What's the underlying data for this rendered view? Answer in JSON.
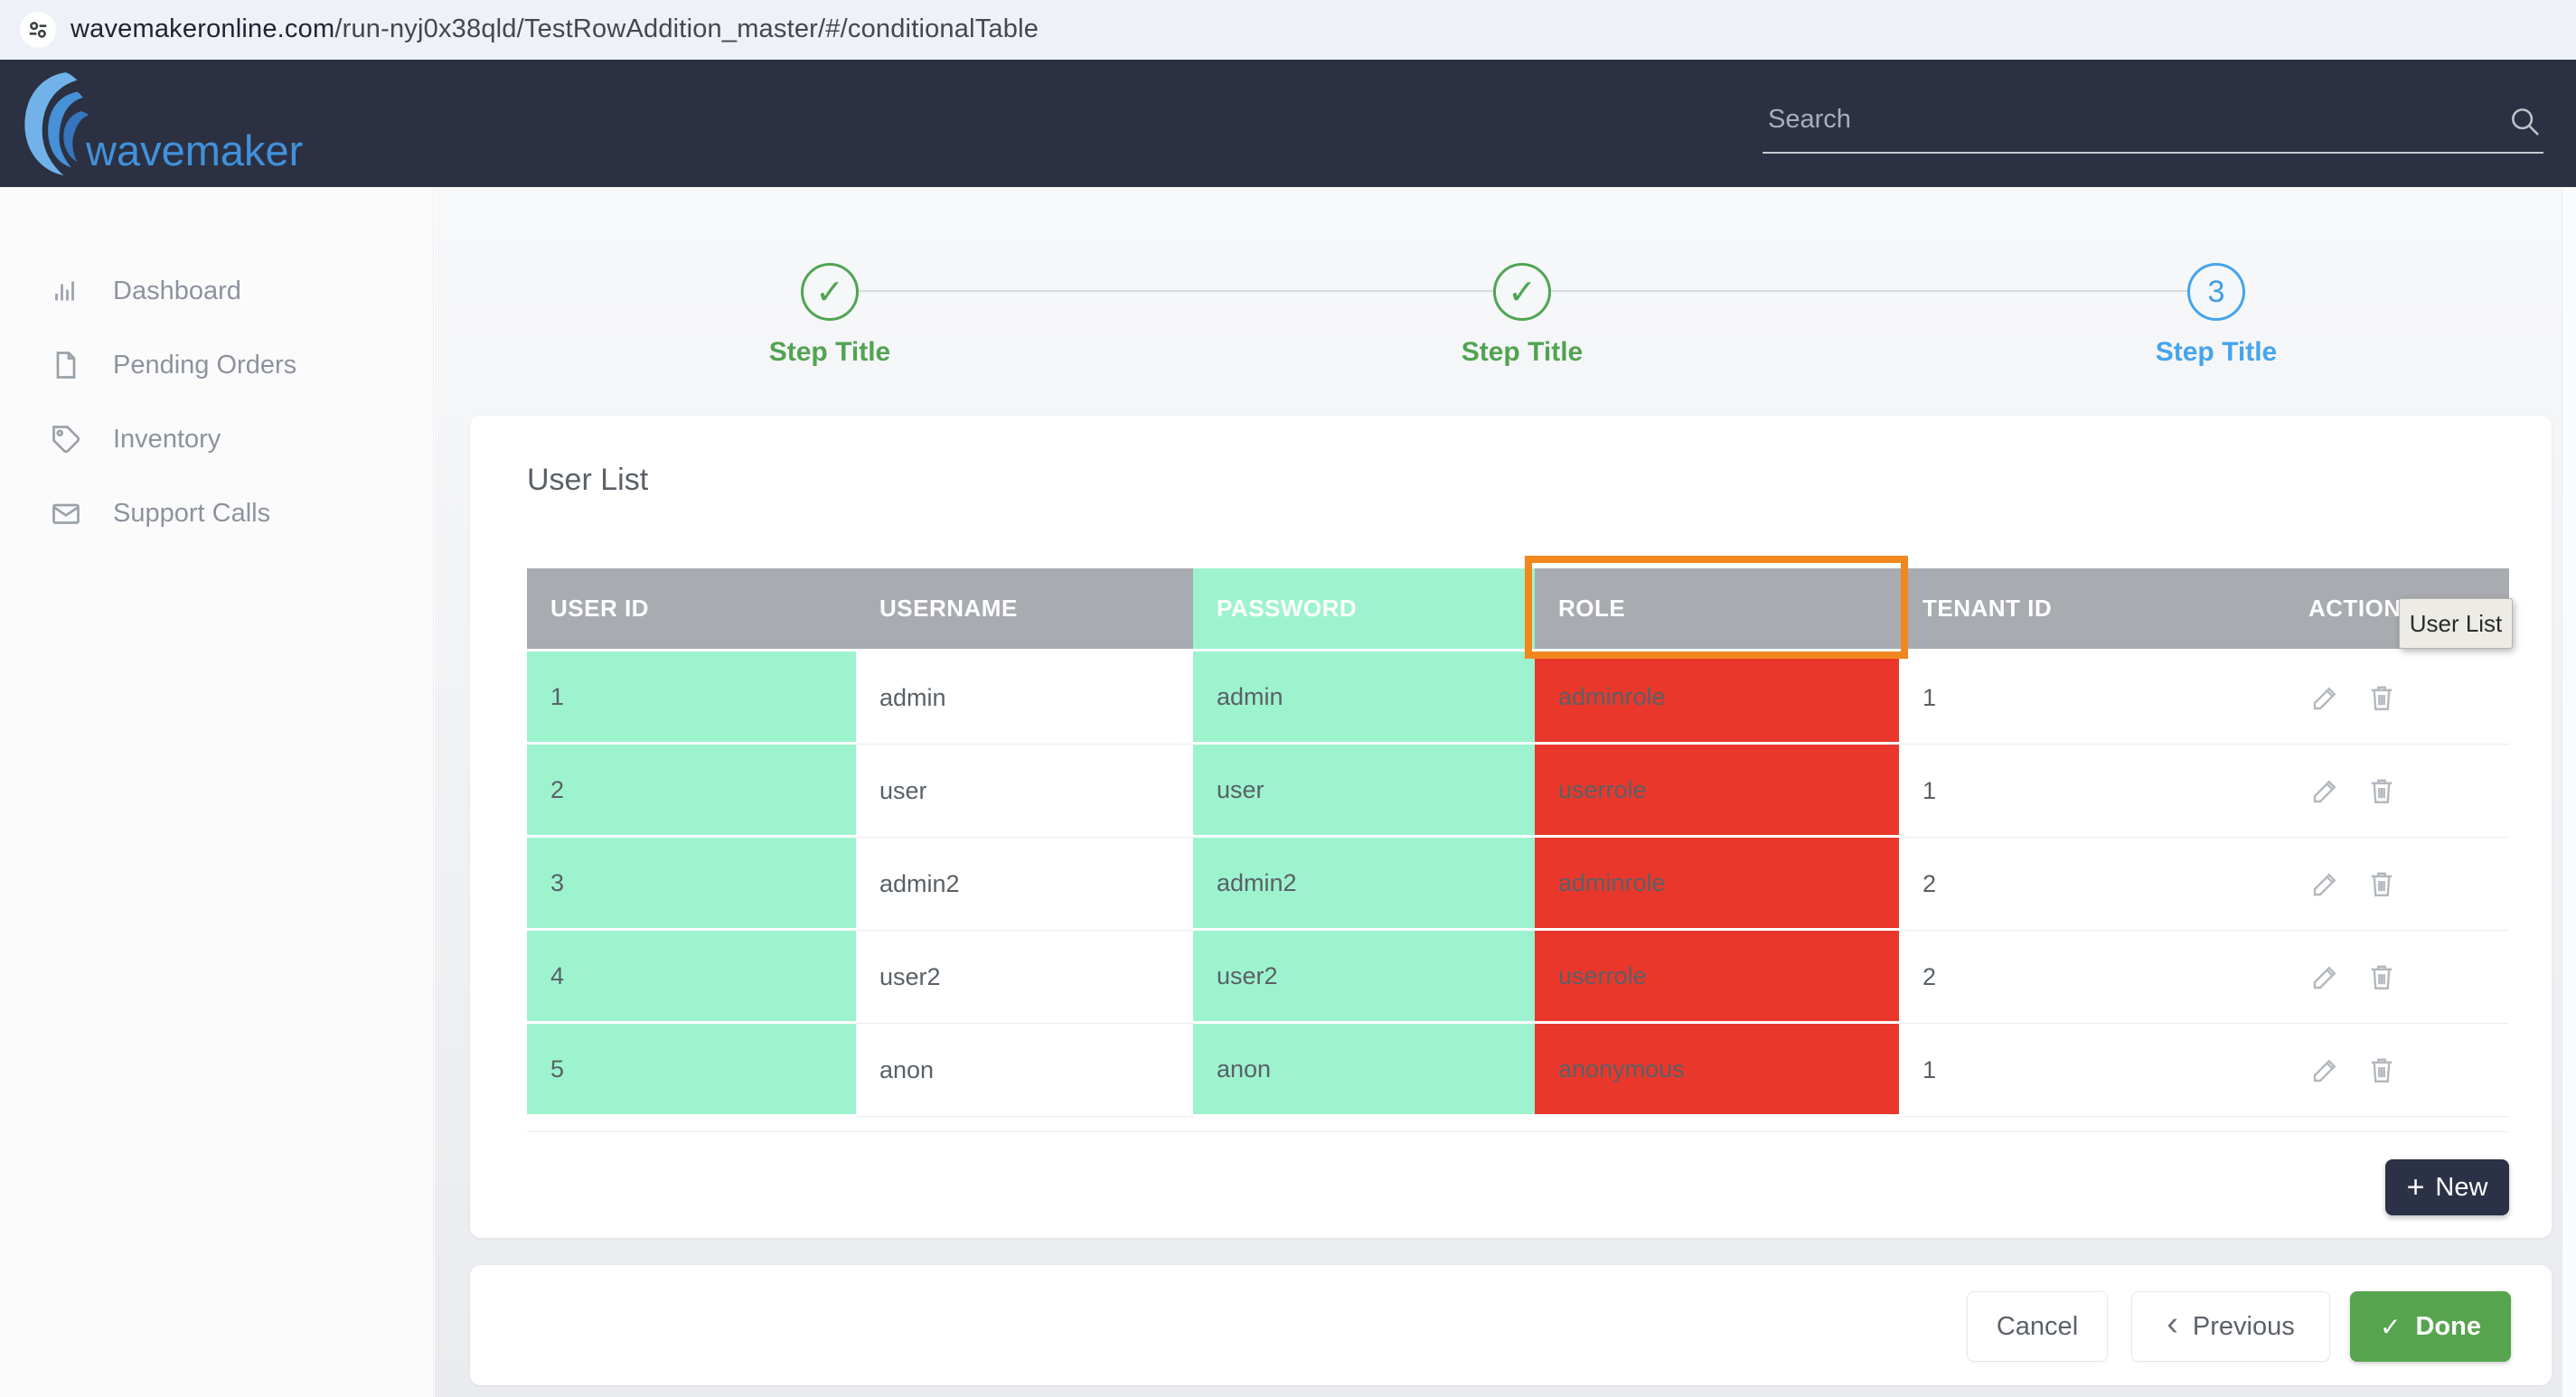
{
  "browser": {
    "url_host": "wavemakeronline.com",
    "url_rest": "/run-nyj0x38qld/TestRowAddition_master/#/conditionalTable"
  },
  "header": {
    "logo_text": "wavemaker",
    "search_placeholder": "Search"
  },
  "sidebar": {
    "items": [
      {
        "icon": "bar-chart-icon",
        "label": "Dashboard"
      },
      {
        "icon": "document-icon",
        "label": "Pending Orders"
      },
      {
        "icon": "tag-icon",
        "label": "Inventory"
      },
      {
        "icon": "envelope-icon",
        "label": "Support Calls"
      }
    ]
  },
  "wizard": {
    "steps": [
      {
        "state": "done",
        "symbol": "✓",
        "label": "Step Title"
      },
      {
        "state": "done",
        "symbol": "✓",
        "label": "Step Title"
      },
      {
        "state": "active",
        "symbol": "3",
        "label": "Step Title"
      }
    ]
  },
  "panel": {
    "title": "User List",
    "tooltip": "User List",
    "new_button": {
      "icon": "+",
      "label": "New"
    },
    "table": {
      "columns": [
        {
          "key": "user_id",
          "label": "USER ID",
          "header_variant": "gray",
          "cell_variant": "mint"
        },
        {
          "key": "username",
          "label": "USERNAME",
          "header_variant": "gray",
          "cell_variant": "white"
        },
        {
          "key": "password",
          "label": "PASSWORD",
          "header_variant": "mint",
          "cell_variant": "mint"
        },
        {
          "key": "role",
          "label": "ROLE",
          "header_variant": "gray",
          "cell_variant": "red",
          "highlighted": true
        },
        {
          "key": "tenant_id",
          "label": "TENANT ID",
          "header_variant": "gray",
          "cell_variant": "white"
        },
        {
          "key": "actions",
          "label": "ACTIONS",
          "header_variant": "gray",
          "cell_variant": "actions"
        }
      ],
      "rows": [
        {
          "user_id": "1",
          "username": "admin",
          "password": "admin",
          "role": "adminrole",
          "tenant_id": "1"
        },
        {
          "user_id": "2",
          "username": "user",
          "password": "user",
          "role": "userrole",
          "tenant_id": "1"
        },
        {
          "user_id": "3",
          "username": "admin2",
          "password": "admin2",
          "role": "adminrole",
          "tenant_id": "2"
        },
        {
          "user_id": "4",
          "username": "user2",
          "password": "user2",
          "role": "userrole",
          "tenant_id": "2"
        },
        {
          "user_id": "5",
          "username": "anon",
          "password": "anon",
          "role": "anonymous",
          "tenant_id": "1"
        }
      ]
    }
  },
  "footer": {
    "cancel": "Cancel",
    "previous_icon": "‹",
    "previous": "Previous",
    "done_icon": "✓",
    "done": "Done"
  },
  "colors": {
    "navy": "#2b3142",
    "mint": "#9ef3cf",
    "red": "#e9382b",
    "header_gray": "#a8abb0",
    "orange_highlight": "#f0871f",
    "step_green": "#4fa554",
    "step_blue": "#45a4ec",
    "done_green": "#57a44e",
    "logo_blue": "#4191da"
  }
}
